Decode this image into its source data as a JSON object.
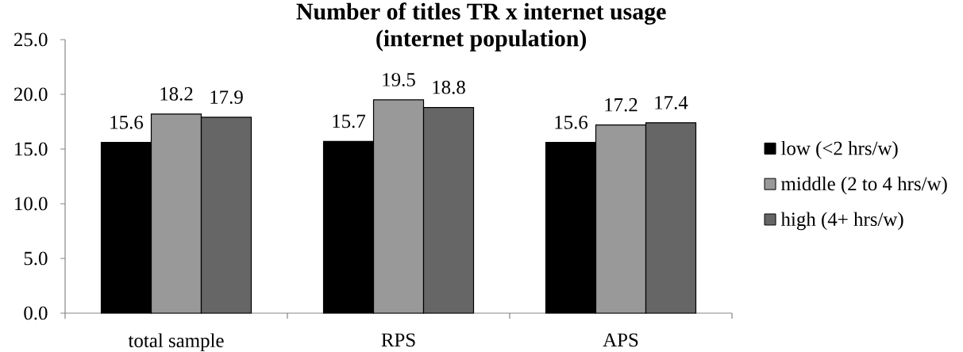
{
  "chart_data": {
    "type": "bar",
    "title": "Number of titles TR x internet usage (internet population)",
    "categories": [
      "total sample",
      "RPS",
      "APS"
    ],
    "series": [
      {
        "name": "low (<2 hrs/w)",
        "color": "#000000",
        "values": [
          15.6,
          15.7,
          15.6
        ]
      },
      {
        "name": "middle (2 to 4 hrs/w)",
        "color": "#999999",
        "values": [
          18.2,
          19.5,
          17.2
        ]
      },
      {
        "name": "high (4+ hrs/w)",
        "color": "#666666",
        "values": [
          17.9,
          18.8,
          17.4
        ]
      }
    ],
    "ylim": [
      0,
      25
    ],
    "yticks": [
      {
        "value": 0,
        "label": "0.0"
      },
      {
        "value": 5,
        "label": "5.0"
      },
      {
        "value": 10,
        "label": "10.0"
      },
      {
        "value": 15,
        "label": "15.0"
      },
      {
        "value": 20,
        "label": "20.0"
      },
      {
        "value": 25,
        "label": "25.0"
      }
    ],
    "data_labels": true,
    "legend": "right"
  }
}
